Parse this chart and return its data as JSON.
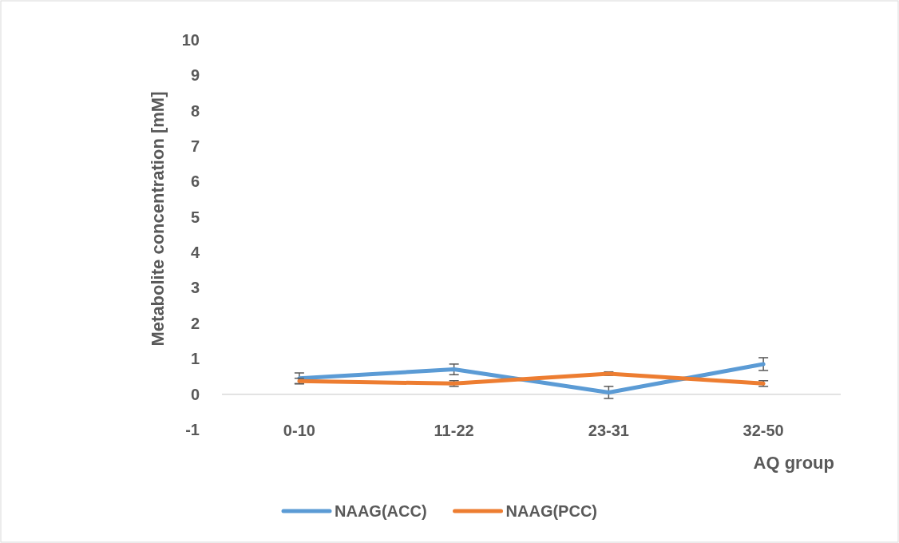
{
  "chart_data": {
    "type": "line",
    "xlabel": "AQ group",
    "ylabel": "Metabolite concentration [mM]",
    "categories": [
      "0-10",
      "11-22",
      "23-31",
      "32-50"
    ],
    "series": [
      {
        "name": "NAAG(ACC)",
        "color": "#5b9bd5",
        "values": [
          0.45,
          0.7,
          0.05,
          0.85
        ],
        "errors": [
          0.15,
          0.15,
          0.17,
          0.18
        ]
      },
      {
        "name": "NAAG(PCC)",
        "color": "#ed7d31",
        "values": [
          0.37,
          0.3,
          0.58,
          0.3
        ],
        "errors": [
          0.08,
          0.08,
          0.05,
          0.08
        ]
      }
    ],
    "ylim": [
      -1,
      10
    ],
    "yticks": [
      -1,
      0,
      1,
      2,
      3,
      4,
      5,
      6,
      7,
      8,
      9,
      10
    ],
    "grid": false,
    "legend": "bottom",
    "marker": "none",
    "line_style": "solid"
  }
}
